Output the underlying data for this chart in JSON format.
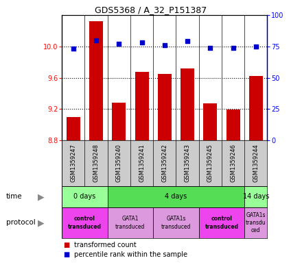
{
  "title": "GDS5368 / A_32_P151387",
  "samples": [
    "GSM1359247",
    "GSM1359248",
    "GSM1359240",
    "GSM1359241",
    "GSM1359242",
    "GSM1359243",
    "GSM1359245",
    "GSM1359246",
    "GSM1359244"
  ],
  "bar_values": [
    9.1,
    10.32,
    9.28,
    9.67,
    9.65,
    9.72,
    9.27,
    9.19,
    9.62
  ],
  "dot_values": [
    73,
    80,
    77,
    78,
    76,
    79,
    74,
    74,
    75
  ],
  "bar_bottom": 8.8,
  "ylim_left": [
    8.8,
    10.4
  ],
  "ylim_right": [
    0,
    100
  ],
  "yticks_left": [
    8.8,
    9.2,
    9.6,
    10.0
  ],
  "yticks_right": [
    0,
    25,
    50,
    75,
    100
  ],
  "bar_color": "#cc0000",
  "dot_color": "#0000cc",
  "time_row": [
    {
      "label": "0 days",
      "start": 0,
      "end": 2,
      "color": "#99ff99"
    },
    {
      "label": "4 days",
      "start": 2,
      "end": 8,
      "color": "#55dd55"
    },
    {
      "label": "14 days",
      "start": 8,
      "end": 9,
      "color": "#99ff99"
    }
  ],
  "protocol_row": [
    {
      "label": "control\ntransduced",
      "start": 0,
      "end": 2,
      "color": "#ee44ee",
      "bold": true
    },
    {
      "label": "GATA1\ntransduced",
      "start": 2,
      "end": 4,
      "color": "#dd99dd",
      "bold": false
    },
    {
      "label": "GATA1s\ntransduced",
      "start": 4,
      "end": 6,
      "color": "#dd99dd",
      "bold": false
    },
    {
      "label": "control\ntransduced",
      "start": 6,
      "end": 8,
      "color": "#ee44ee",
      "bold": true
    },
    {
      "label": "GATA1s\ntransdu\nced",
      "start": 8,
      "end": 9,
      "color": "#dd99dd",
      "bold": false
    }
  ]
}
